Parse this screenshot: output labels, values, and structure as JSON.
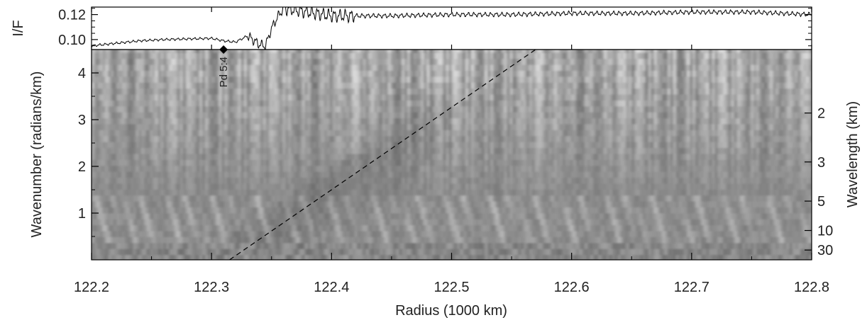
{
  "chart_data": [
    {
      "type": "line",
      "panel": "profile",
      "ylabel": "I/F",
      "xlim": [
        122.2,
        122.8
      ],
      "ylim": [
        0.092,
        0.126
      ],
      "y_ticks": [
        0.1,
        0.12
      ],
      "y_tick_labels": [
        "0.10",
        "0.12"
      ],
      "y_minor_ticks": [
        0.095,
        0.105,
        0.11,
        0.115,
        0.125
      ],
      "grid": false,
      "x": [
        122.2,
        122.24,
        122.26,
        122.3,
        122.31,
        122.32,
        122.33,
        122.34,
        122.345,
        122.35,
        122.355,
        122.36,
        122.4,
        122.45,
        122.5,
        122.55,
        122.6,
        122.65,
        122.7,
        122.75,
        122.8
      ],
      "y": [
        0.095,
        0.099,
        0.1,
        0.101,
        0.099,
        0.098,
        0.103,
        0.096,
        0.095,
        0.109,
        0.118,
        0.125,
        0.119,
        0.119,
        0.12,
        0.12,
        0.121,
        0.121,
        0.122,
        0.122,
        0.12
      ]
    },
    {
      "type": "heatmap",
      "panel": "wavelet",
      "xlabel": "Radius (1000 km)",
      "ylabel": "Wavenumber (radians/km)",
      "y2label": "Wavelength (km)",
      "xlim": [
        122.2,
        122.8
      ],
      "ylim": [
        0,
        4.5
      ],
      "x_ticks": [
        122.2,
        122.3,
        122.4,
        122.5,
        122.6,
        122.7,
        122.8
      ],
      "x_tick_labels": [
        "122.2",
        "122.3",
        "122.4",
        "122.5",
        "122.6",
        "122.7",
        "122.8"
      ],
      "y_ticks": [
        1,
        2,
        3,
        4
      ],
      "y_tick_labels": [
        "1",
        "2",
        "3",
        "4"
      ],
      "y2_ticks_wavelength_km": [
        2,
        3,
        5,
        10,
        30
      ],
      "y2_tick_labels": [
        "2",
        "3",
        "5",
        "10",
        "30"
      ],
      "colormap": "grayscale",
      "annotations": [
        {
          "label": "Pd 5:4",
          "radius": 122.31
        }
      ],
      "dispersion_line": {
        "style": "dashed",
        "x": [
          122.315,
          122.57
        ],
        "y": [
          0,
          4.5
        ]
      }
    }
  ]
}
